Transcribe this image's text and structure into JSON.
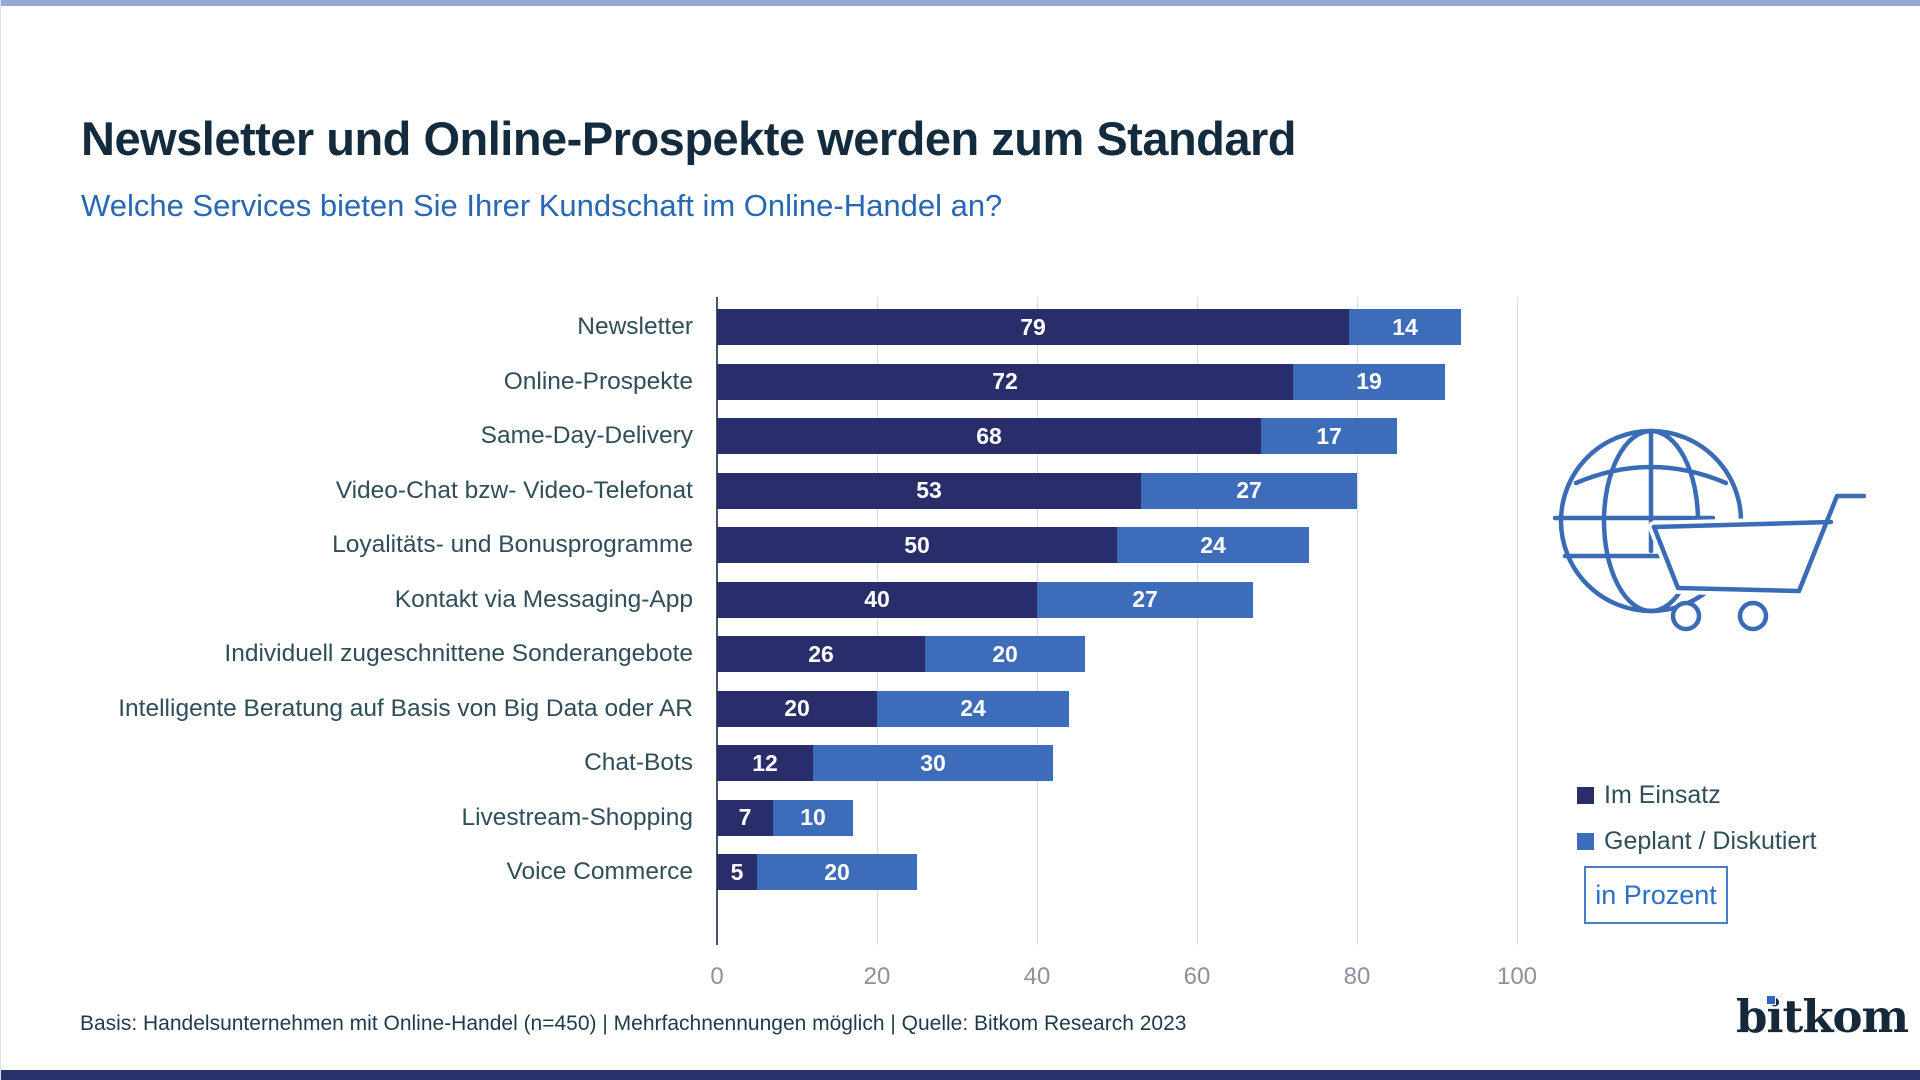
{
  "page": {
    "title": "Newsletter und Online-Prospekte werden zum Standard",
    "subtitle": "Welche Services bieten Sie Ihrer Kundschaft im Online-Handel an?",
    "footer": "Basis: Handelsunternehmen mit Online-Handel (n=450) | Mehrfachnennungen möglich | Quelle: Bitkom Research 2023",
    "brand": "bitkom"
  },
  "legend": [
    {
      "label": "Im Einsatz",
      "color": "#292e6b"
    },
    {
      "label": "Geplant / Diskutiert",
      "color": "#3c6cba"
    }
  ],
  "unit_box_label": "in Prozent",
  "icon": {
    "name": "globe-shopping-cart",
    "color": "#3a6cb5"
  },
  "chart_data": {
    "type": "bar",
    "orientation": "horizontal",
    "stacked": true,
    "title": "Newsletter und Online-Prospekte werden zum Standard",
    "subtitle": "Welche Services bieten Sie Ihrer Kundschaft im Online-Handel an?",
    "unit": "Prozent",
    "categories": [
      "Newsletter",
      "Online-Prospekte",
      "Same-Day-Delivery",
      "Video-Chat bzw- Video-Telefonat",
      "Loyalitäts- und Bonusprogramme",
      "Kontakt via Messaging-App",
      "Individuell zugeschnittene Sonderangebote",
      "Intelligente Beratung auf Basis von Big Data oder AR",
      "Chat-Bots",
      "Livestream-Shopping",
      "Voice Commerce"
    ],
    "series": [
      {
        "name": "Im Einsatz",
        "color": "#292e6b",
        "values": [
          79,
          72,
          68,
          53,
          50,
          40,
          26,
          20,
          12,
          7,
          5
        ]
      },
      {
        "name": "Geplant / Diskutiert",
        "color": "#3c6cba",
        "values": [
          14,
          19,
          17,
          27,
          24,
          27,
          20,
          24,
          30,
          10,
          20
        ]
      }
    ],
    "x_ticks": [
      0,
      20,
      40,
      60,
      80,
      100
    ],
    "xlim": [
      0,
      100
    ],
    "grid": "vertical",
    "value_labels": "inside-white",
    "legend_position": "right-bottom",
    "source_note": "Basis: Handelsunternehmen mit Online-Handel (n=450) | Mehrfachnennungen möglich | Quelle: Bitkom Research 2023"
  }
}
